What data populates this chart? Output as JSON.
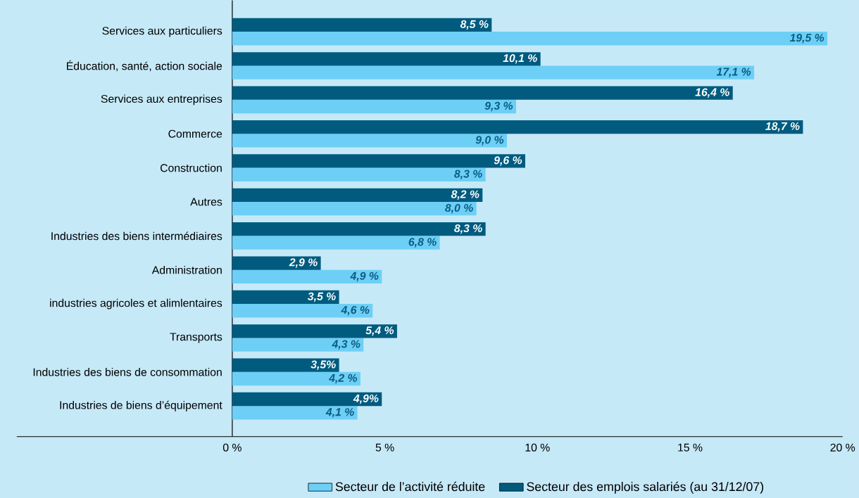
{
  "chart_data": {
    "type": "bar",
    "orientation": "horizontal",
    "categories": [
      "Services aux particuliers",
      "Éducation, santé, action sociale",
      "Services aux entreprises",
      "Commerce",
      "Construction",
      "Autres",
      "Industries des biens intermédiaires",
      "Administration",
      "industries agricoles et alimlentaires",
      "Transports",
      "Industries des biens de consommation",
      "Industries de biens d’équipement"
    ],
    "series": [
      {
        "name": "Secteur de l’activité réduite",
        "color": "#6dcff6",
        "values": [
          19.5,
          17.1,
          9.3,
          9.0,
          8.3,
          8.0,
          6.8,
          4.9,
          4.6,
          4.3,
          4.2,
          4.1
        ],
        "value_labels": [
          "19,5 %",
          "17,1 %",
          "9,3 %",
          "9,0 %",
          "8,3 %",
          "8,0 %",
          "6,8 %",
          "4,9 %",
          "4,6 %",
          "4,3 %",
          "4,2 %",
          "4,1 %"
        ]
      },
      {
        "name": "Secteur des emplois salariés (au 31/12/07)",
        "color": "#005b7f",
        "values": [
          8.5,
          10.1,
          16.4,
          18.7,
          9.6,
          8.2,
          8.3,
          2.9,
          3.5,
          5.4,
          3.5,
          4.9
        ],
        "value_labels": [
          "8,5 %",
          "10,1 %",
          "16,4 %",
          "18,7 %",
          "9,6 %",
          "8,2 %",
          "8,3 %",
          "2,9 %",
          "3,5 %",
          "5,4 %",
          "3,5%",
          "4,9%"
        ]
      }
    ],
    "xlim": [
      0,
      20
    ],
    "xticks": [
      {
        "value": 0,
        "label": "0 %"
      },
      {
        "value": 5,
        "label": "5 %"
      },
      {
        "value": 10,
        "label": "10 %"
      },
      {
        "value": 15,
        "label": "15 %"
      },
      {
        "value": 20,
        "label": "20 %"
      }
    ],
    "grid": false,
    "legend": "bottom"
  }
}
